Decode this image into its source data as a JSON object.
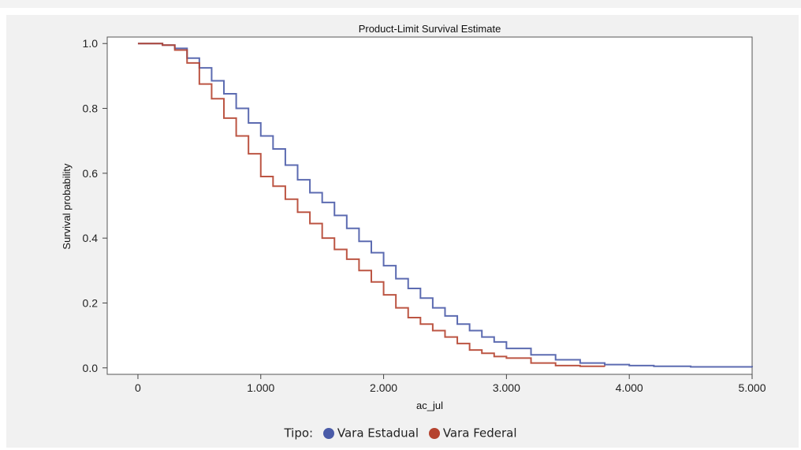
{
  "chart_data": {
    "type": "line",
    "title": "Product-Limit Survival Estimate",
    "xlabel": "ac_jul",
    "ylabel": "Survival probability",
    "xlim": [
      -250,
      5000
    ],
    "ylim": [
      -0.02,
      1.02
    ],
    "x_ticks": [
      0,
      1000,
      2000,
      3000,
      4000,
      5000
    ],
    "x_tick_labels": [
      "0",
      "1.000",
      "2.000",
      "3.000",
      "4.000",
      "5.000"
    ],
    "y_ticks": [
      0.0,
      0.2,
      0.4,
      0.6,
      0.8,
      1.0
    ],
    "y_tick_labels": [
      "0.0",
      "0.2",
      "0.4",
      "0.6",
      "0.8",
      "1.0"
    ],
    "grid": false,
    "legend_position": "bottom",
    "legend_title": "Tipo:",
    "series": [
      {
        "name": "Vara Estadual",
        "color": "#4a5ba8",
        "x": [
          0,
          100,
          200,
          300,
          400,
          500,
          600,
          700,
          800,
          900,
          1000,
          1100,
          1200,
          1300,
          1400,
          1500,
          1600,
          1700,
          1800,
          1900,
          2000,
          2100,
          2200,
          2300,
          2400,
          2500,
          2600,
          2700,
          2800,
          2900,
          3000,
          3200,
          3400,
          3600,
          3800,
          4000,
          4200,
          4500,
          5000
        ],
        "y": [
          1.0,
          1.0,
          0.995,
          0.985,
          0.955,
          0.925,
          0.885,
          0.845,
          0.8,
          0.755,
          0.715,
          0.675,
          0.625,
          0.58,
          0.54,
          0.51,
          0.47,
          0.43,
          0.39,
          0.355,
          0.315,
          0.275,
          0.245,
          0.215,
          0.185,
          0.16,
          0.135,
          0.115,
          0.095,
          0.08,
          0.06,
          0.04,
          0.025,
          0.015,
          0.01,
          0.007,
          0.005,
          0.003,
          0.002
        ]
      },
      {
        "name": "Vara Federal",
        "color": "#b5432f",
        "x": [
          0,
          100,
          200,
          300,
          400,
          500,
          600,
          700,
          800,
          900,
          1000,
          1100,
          1200,
          1300,
          1400,
          1500,
          1600,
          1700,
          1800,
          1900,
          2000,
          2100,
          2200,
          2300,
          2400,
          2500,
          2600,
          2700,
          2800,
          2900,
          3000,
          3200,
          3400,
          3600,
          3800
        ],
        "y": [
          1.0,
          1.0,
          0.995,
          0.98,
          0.94,
          0.875,
          0.83,
          0.77,
          0.715,
          0.66,
          0.59,
          0.56,
          0.52,
          0.48,
          0.445,
          0.4,
          0.365,
          0.335,
          0.3,
          0.265,
          0.225,
          0.185,
          0.155,
          0.135,
          0.115,
          0.095,
          0.075,
          0.055,
          0.045,
          0.035,
          0.03,
          0.015,
          0.007,
          0.005,
          0.004
        ]
      }
    ]
  }
}
